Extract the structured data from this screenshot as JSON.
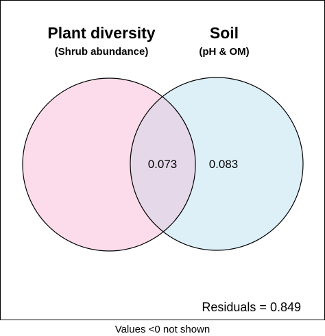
{
  "sets": [
    {
      "title": "Plant diversity",
      "subtitle": "(Shrub abundance)",
      "unique_value": null,
      "fill_color": "#fcdcea"
    },
    {
      "title": "Soil",
      "subtitle": "(pH & OM)",
      "unique_value": "0.083",
      "fill_color": "#ddf0f8"
    }
  ],
  "intersection": {
    "value": "0.073",
    "fill_color": "#e5d8e8"
  },
  "residuals_label": "Residuals = 0.849",
  "footer_note": "Values <0 not shown",
  "colors": {
    "stroke": "#000000",
    "background": "#ffffff"
  }
}
